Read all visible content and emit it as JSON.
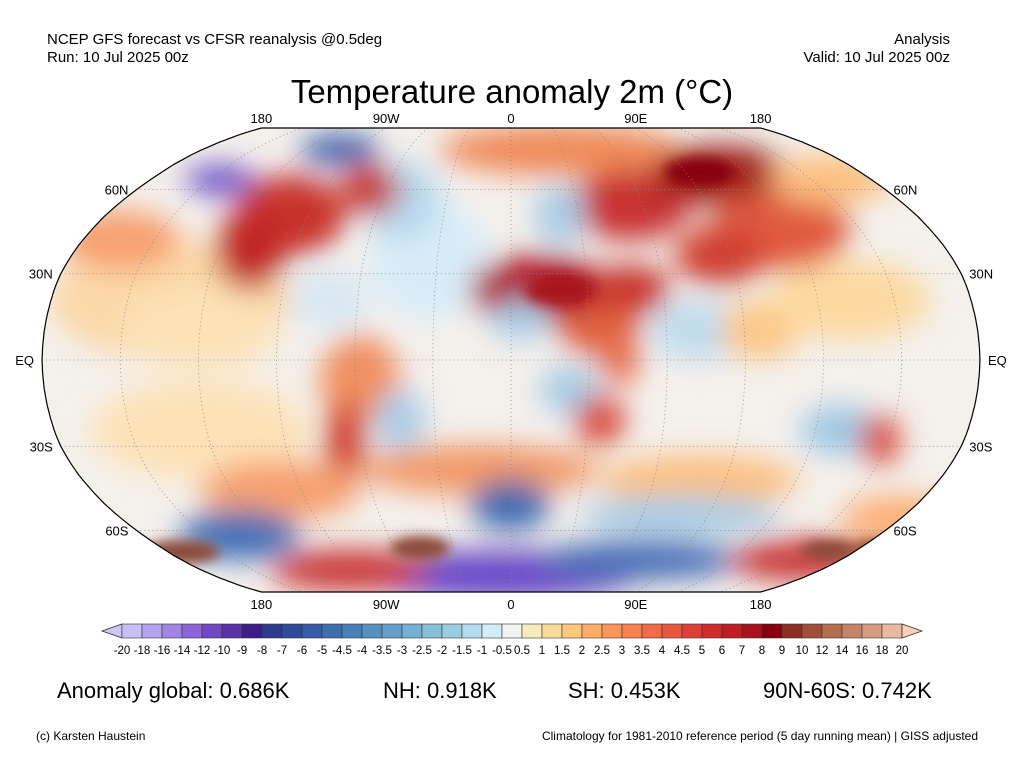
{
  "header": {
    "source": "NCEP GFS forecast vs CFSR reanalysis @0.5deg",
    "run": "Run: 10 Jul 2025 00z",
    "kind": "Analysis",
    "valid": "Valid: 10 Jul 2025 00z"
  },
  "title": "Temperature anomaly 2m (°C)",
  "map": {
    "projection": "Robinson",
    "lon_labels": [
      "180",
      "90W",
      "0",
      "90E",
      "180"
    ],
    "lat_labels": [
      "60N",
      "30N",
      "EQ",
      "30S",
      "60S"
    ]
  },
  "colorbar": {
    "labels": [
      "-20",
      "-18",
      "-16",
      "-14",
      "-12",
      "-10",
      "-9",
      "-8",
      "-7",
      "-6",
      "-5",
      "-4.5",
      "-4",
      "-3.5",
      "-3",
      "-2.5",
      "-2",
      "-1.5",
      "-1",
      "-0.5",
      "0.5",
      "1",
      "1.5",
      "2",
      "2.5",
      "3",
      "3.5",
      "4",
      "4.5",
      "5",
      "6",
      "7",
      "8",
      "9",
      "10",
      "12",
      "14",
      "16",
      "18",
      "20"
    ],
    "colors": [
      "#c8c0f4",
      "#b4a4ee",
      "#a184e4",
      "#8c66d8",
      "#7247c4",
      "#5a33a8",
      "#3d1e88",
      "#2c3a8c",
      "#2f4a98",
      "#355ca4",
      "#3f6eac",
      "#4a80b6",
      "#5890c0",
      "#66a0c8",
      "#76b0d2",
      "#88c0dc",
      "#9cccE2",
      "#b4dcee",
      "#d4ecf8",
      "#f2f2f2",
      "#f5ecbe",
      "#fadc9a",
      "#fdc87c",
      "#fcae68",
      "#fa9658",
      "#f7824e",
      "#f06c48",
      "#e85840",
      "#dc4038",
      "#d02c2c",
      "#be1e24",
      "#a8121c",
      "#880010",
      "#8c2e20",
      "#a05038",
      "#b46e50",
      "#c48468",
      "#d49c80",
      "#e8b8a0"
    ],
    "under_color": "#ccc8f5",
    "over_color": "#fcd0b8"
  },
  "stats": {
    "global": "Anomaly global: 0.686K",
    "nh": "NH: 0.918K",
    "sh": "SH: 0.453K",
    "band": "90N-60S: 0.742K"
  },
  "footer": {
    "credit": "(c) Karsten Haustein",
    "note": "Climatology for 1981-2010 reference period (5 day running mean) | GISS adjusted"
  }
}
